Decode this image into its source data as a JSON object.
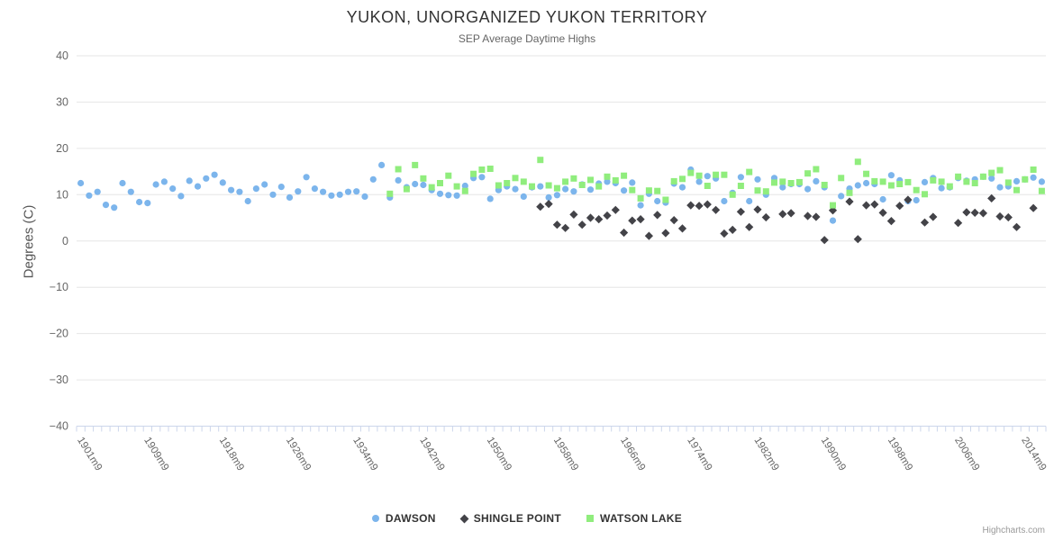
{
  "title": "YUKON, UNORGANIZED YUKON TERRITORY",
  "subtitle": "SEP Average Daytime Highs",
  "credits": "Highcharts.com",
  "colors": {
    "background": "#ffffff",
    "gridline": "#e6e6e6",
    "axis_line": "#ccd6eb",
    "text_primary": "#333333",
    "text_secondary": "#666666",
    "credits_text": "#999999",
    "dawson": "#7cb5ec",
    "shingle_point": "#434348",
    "watson_lake": "#90ed7d"
  },
  "chart_data": {
    "type": "scatter",
    "title": "YUKON, UNORGANIZED YUKON TERRITORY",
    "subtitle": "SEP Average Daytime Highs",
    "xlabel": "",
    "ylabel": "Degrees (C)",
    "ylim": [
      -40,
      40
    ],
    "ytick_step": 10,
    "grid": "horizontal",
    "legend_position": "bottom",
    "x_axis": {
      "first_year": 1901,
      "last_year": 2016,
      "label_suffix": "m9",
      "labeled_years": [
        1901,
        1909,
        1918,
        1926,
        1934,
        1942,
        1950,
        1958,
        1966,
        1974,
        1982,
        1990,
        1998,
        2006,
        2014
      ],
      "tick_labels": [
        "1901m9",
        "1909m9",
        "1918m9",
        "1926m9",
        "1934m9",
        "1942m9",
        "1950m9",
        "1958m9",
        "1966m9",
        "1974m9",
        "1982m9",
        "1990m9",
        "1998m9",
        "2006m9",
        "2014m9"
      ]
    },
    "series": [
      {
        "name": "DAWSON",
        "marker": "circle",
        "color": "#7cb5ec",
        "points": [
          [
            1901,
            12.5
          ],
          [
            1902,
            9.8
          ],
          [
            1903,
            10.6
          ],
          [
            1904,
            7.8
          ],
          [
            1905,
            7.2
          ],
          [
            1906,
            12.5
          ],
          [
            1907,
            10.6
          ],
          [
            1908,
            8.4
          ],
          [
            1909,
            8.2
          ],
          [
            1910,
            12.2
          ],
          [
            1911,
            12.8
          ],
          [
            1912,
            11.3
          ],
          [
            1913,
            9.7
          ],
          [
            1914,
            13.0
          ],
          [
            1915,
            11.8
          ],
          [
            1916,
            13.5
          ],
          [
            1917,
            14.3
          ],
          [
            1918,
            12.6
          ],
          [
            1919,
            11.0
          ],
          [
            1920,
            10.6
          ],
          [
            1921,
            8.6
          ],
          [
            1922,
            11.3
          ],
          [
            1923,
            12.2
          ],
          [
            1924,
            10.0
          ],
          [
            1925,
            11.7
          ],
          [
            1926,
            9.4
          ],
          [
            1927,
            10.7
          ],
          [
            1928,
            13.8
          ],
          [
            1929,
            11.3
          ],
          [
            1930,
            10.6
          ],
          [
            1931,
            9.8
          ],
          [
            1932,
            10.0
          ],
          [
            1933,
            10.6
          ],
          [
            1934,
            10.7
          ],
          [
            1935,
            9.6
          ],
          [
            1936,
            13.3
          ],
          [
            1937,
            16.4
          ],
          [
            1938,
            9.4
          ],
          [
            1939,
            13.1
          ],
          [
            1940,
            11.6
          ],
          [
            1941,
            12.3
          ],
          [
            1942,
            12.1
          ],
          [
            1943,
            11.0
          ],
          [
            1944,
            10.2
          ],
          [
            1945,
            9.9
          ],
          [
            1946,
            9.8
          ],
          [
            1947,
            11.9
          ],
          [
            1948,
            13.6
          ],
          [
            1949,
            13.8
          ],
          [
            1950,
            9.1
          ],
          [
            1951,
            11.0
          ],
          [
            1952,
            11.8
          ],
          [
            1953,
            11.2
          ],
          [
            1954,
            9.6
          ],
          [
            1955,
            11.6
          ],
          [
            1956,
            11.8
          ],
          [
            1957,
            9.4
          ],
          [
            1958,
            9.9
          ],
          [
            1959,
            11.2
          ],
          [
            1960,
            10.7
          ],
          [
            1961,
            12.2
          ],
          [
            1962,
            11.1
          ],
          [
            1963,
            12.4
          ],
          [
            1964,
            12.8
          ],
          [
            1965,
            12.5
          ],
          [
            1966,
            10.9
          ],
          [
            1967,
            12.6
          ],
          [
            1968,
            7.7
          ],
          [
            1969,
            10.2
          ],
          [
            1970,
            8.6
          ],
          [
            1971,
            8.3
          ],
          [
            1972,
            12.4
          ],
          [
            1973,
            11.6
          ],
          [
            1974,
            15.4
          ],
          [
            1975,
            12.8
          ],
          [
            1976,
            14.0
          ],
          [
            1977,
            13.5
          ],
          [
            1978,
            8.6
          ],
          [
            1979,
            10.4
          ],
          [
            1980,
            13.8
          ],
          [
            1981,
            8.6
          ],
          [
            1982,
            13.3
          ],
          [
            1983,
            10.0
          ],
          [
            1984,
            13.6
          ],
          [
            1985,
            11.6
          ],
          [
            1986,
            12.3
          ],
          [
            1987,
            12.3
          ],
          [
            1988,
            11.2
          ],
          [
            1989,
            12.9
          ],
          [
            1990,
            11.6
          ],
          [
            1991,
            4.4
          ],
          [
            1992,
            9.7
          ],
          [
            1993,
            11.3
          ],
          [
            1994,
            12.0
          ],
          [
            1995,
            12.5
          ],
          [
            1996,
            12.3
          ],
          [
            1997,
            9.0
          ],
          [
            1998,
            14.2
          ],
          [
            1999,
            13.1
          ],
          [
            2000,
            8.6
          ],
          [
            2001,
            8.8
          ],
          [
            2002,
            12.7
          ],
          [
            2003,
            13.6
          ],
          [
            2004,
            11.4
          ],
          [
            2005,
            11.6
          ],
          [
            2006,
            13.6
          ],
          [
            2007,
            13.0
          ],
          [
            2008,
            13.3
          ],
          [
            2009,
            13.9
          ],
          [
            2010,
            13.5
          ],
          [
            2011,
            11.6
          ],
          [
            2012,
            11.8
          ],
          [
            2013,
            12.9
          ],
          [
            2014,
            13.3
          ],
          [
            2015,
            13.7
          ],
          [
            2016,
            12.8
          ]
        ]
      },
      {
        "name": "SHINGLE POINT",
        "marker": "diamond",
        "color": "#434348",
        "points": [
          [
            1956,
            7.4
          ],
          [
            1957,
            8.0
          ],
          [
            1958,
            3.5
          ],
          [
            1959,
            2.8
          ],
          [
            1960,
            5.7
          ],
          [
            1961,
            3.5
          ],
          [
            1962,
            5.0
          ],
          [
            1963,
            4.7
          ],
          [
            1964,
            5.5
          ],
          [
            1965,
            6.7
          ],
          [
            1966,
            1.8
          ],
          [
            1967,
            4.4
          ],
          [
            1968,
            4.7
          ],
          [
            1969,
            1.1
          ],
          [
            1970,
            5.6
          ],
          [
            1971,
            1.7
          ],
          [
            1972,
            4.5
          ],
          [
            1973,
            2.7
          ],
          [
            1974,
            7.7
          ],
          [
            1975,
            7.6
          ],
          [
            1976,
            7.9
          ],
          [
            1977,
            6.7
          ],
          [
            1978,
            1.6
          ],
          [
            1979,
            2.4
          ],
          [
            1980,
            6.3
          ],
          [
            1981,
            3.0
          ],
          [
            1982,
            6.8
          ],
          [
            1983,
            5.1
          ],
          [
            1985,
            5.8
          ],
          [
            1986,
            6.0
          ],
          [
            1988,
            5.4
          ],
          [
            1989,
            5.2
          ],
          [
            1990,
            0.2
          ],
          [
            1991,
            6.6
          ],
          [
            1993,
            8.5
          ],
          [
            1994,
            0.4
          ],
          [
            1995,
            7.7
          ],
          [
            1996,
            7.9
          ],
          [
            1997,
            6.1
          ],
          [
            1998,
            4.3
          ],
          [
            1999,
            7.6
          ],
          [
            2000,
            8.9
          ],
          [
            2002,
            4.0
          ],
          [
            2003,
            5.2
          ],
          [
            2006,
            3.9
          ],
          [
            2007,
            6.2
          ],
          [
            2008,
            6.1
          ],
          [
            2009,
            6.0
          ],
          [
            2010,
            9.2
          ],
          [
            2011,
            5.3
          ],
          [
            2012,
            5.1
          ],
          [
            2013,
            3.0
          ],
          [
            2015,
            7.1
          ]
        ]
      },
      {
        "name": "WATSON LAKE",
        "marker": "square",
        "color": "#90ed7d",
        "points": [
          [
            1938,
            10.2
          ],
          [
            1939,
            15.5
          ],
          [
            1940,
            11.2
          ],
          [
            1941,
            16.4
          ],
          [
            1942,
            13.5
          ],
          [
            1943,
            11.6
          ],
          [
            1944,
            12.5
          ],
          [
            1945,
            14.1
          ],
          [
            1946,
            11.8
          ],
          [
            1947,
            10.8
          ],
          [
            1948,
            14.5
          ],
          [
            1949,
            15.4
          ],
          [
            1950,
            15.6
          ],
          [
            1951,
            12.0
          ],
          [
            1952,
            12.5
          ],
          [
            1953,
            13.6
          ],
          [
            1954,
            12.8
          ],
          [
            1955,
            11.8
          ],
          [
            1956,
            17.5
          ],
          [
            1957,
            12.0
          ],
          [
            1958,
            11.4
          ],
          [
            1959,
            12.8
          ],
          [
            1960,
            13.5
          ],
          [
            1961,
            12.1
          ],
          [
            1962,
            13.2
          ],
          [
            1963,
            11.8
          ],
          [
            1964,
            13.9
          ],
          [
            1965,
            13.1
          ],
          [
            1966,
            14.1
          ],
          [
            1967,
            11.0
          ],
          [
            1968,
            9.2
          ],
          [
            1969,
            10.9
          ],
          [
            1970,
            10.8
          ],
          [
            1971,
            8.9
          ],
          [
            1972,
            12.9
          ],
          [
            1973,
            13.4
          ],
          [
            1974,
            14.7
          ],
          [
            1975,
            14.1
          ],
          [
            1976,
            11.9
          ],
          [
            1977,
            14.3
          ],
          [
            1978,
            14.3
          ],
          [
            1979,
            10.0
          ],
          [
            1980,
            11.9
          ],
          [
            1981,
            14.9
          ],
          [
            1982,
            10.9
          ],
          [
            1983,
            10.7
          ],
          [
            1984,
            12.6
          ],
          [
            1985,
            12.8
          ],
          [
            1986,
            12.5
          ],
          [
            1987,
            12.7
          ],
          [
            1988,
            14.6
          ],
          [
            1989,
            15.5
          ],
          [
            1990,
            12.1
          ],
          [
            1991,
            7.7
          ],
          [
            1992,
            13.6
          ],
          [
            1993,
            10.4
          ],
          [
            1994,
            17.1
          ],
          [
            1995,
            14.5
          ],
          [
            1996,
            12.9
          ],
          [
            1997,
            12.8
          ],
          [
            1998,
            12.0
          ],
          [
            1999,
            12.3
          ],
          [
            2000,
            12.7
          ],
          [
            2001,
            11.0
          ],
          [
            2002,
            10.1
          ],
          [
            2003,
            13.1
          ],
          [
            2004,
            12.8
          ],
          [
            2005,
            11.8
          ],
          [
            2006,
            13.9
          ],
          [
            2007,
            12.8
          ],
          [
            2008,
            12.5
          ],
          [
            2009,
            13.9
          ],
          [
            2010,
            14.7
          ],
          [
            2011,
            15.3
          ],
          [
            2012,
            12.6
          ],
          [
            2013,
            11.0
          ],
          [
            2014,
            13.3
          ],
          [
            2015,
            15.4
          ],
          [
            2016,
            10.8
          ]
        ]
      }
    ]
  }
}
